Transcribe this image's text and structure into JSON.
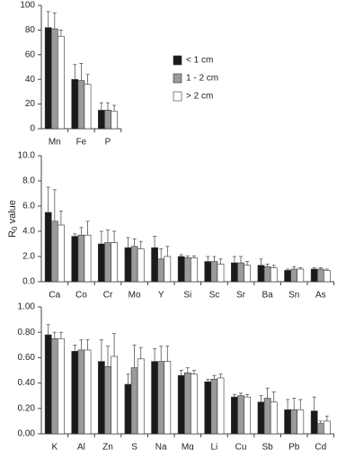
{
  "chart_data": [
    {
      "type": "bar",
      "categories": [
        "Mn",
        "Fe",
        "P"
      ],
      "series": [
        {
          "name": "< 1 cm",
          "color": "#1a1a1a",
          "values": [
            82,
            40,
            15
          ],
          "errors": [
            13,
            12,
            6
          ]
        },
        {
          "name": "1 - 2 cm",
          "color": "#9a9a9a",
          "values": [
            81,
            39,
            15
          ],
          "errors": [
            13,
            14,
            6
          ]
        },
        {
          "name": "> 2 cm",
          "color": "#ffffff",
          "values": [
            75,
            36,
            14
          ],
          "errors": [
            5,
            8,
            5
          ]
        }
      ],
      "ylim": [
        0,
        100
      ],
      "yticks": [
        0,
        20,
        40,
        60,
        80,
        100
      ],
      "legend": "right"
    },
    {
      "type": "bar",
      "categories": [
        "Ca",
        "Co",
        "Cr",
        "Mo",
        "Y",
        "Si",
        "Sc",
        "Sr",
        "Ba",
        "Sn",
        "As"
      ],
      "ylabel": {
        "main": "R",
        "sub": "0",
        "tail": " value"
      },
      "series": [
        {
          "color": "#1a1a1a",
          "values": [
            5.5,
            3.6,
            3.0,
            2.7,
            2.7,
            2.0,
            1.6,
            1.5,
            1.3,
            0.9,
            1.0
          ],
          "errors": [
            2.0,
            0.2,
            1.0,
            0.8,
            0.9,
            0.15,
            0.4,
            0.5,
            0.5,
            0.1,
            0.1
          ]
        },
        {
          "color": "#9a9a9a",
          "values": [
            4.8,
            3.7,
            3.1,
            2.8,
            1.8,
            1.9,
            1.6,
            1.5,
            1.2,
            1.0,
            1.0
          ],
          "errors": [
            2.5,
            0.6,
            1.0,
            0.6,
            0.8,
            0.15,
            0.4,
            0.5,
            0.2,
            0.2,
            0.1
          ]
        },
        {
          "color": "#ffffff",
          "values": [
            4.5,
            3.7,
            3.1,
            2.6,
            2.0,
            1.9,
            1.4,
            1.3,
            1.1,
            1.0,
            0.9
          ],
          "errors": [
            1.1,
            1.1,
            0.9,
            0.6,
            0.8,
            0.15,
            0.4,
            0.3,
            0.2,
            0.1,
            0.1
          ]
        }
      ],
      "ylim": [
        0,
        10
      ],
      "yticks": [
        {
          "value": 0,
          "label": "0.0"
        },
        {
          "value": 2,
          "label": "2.0"
        },
        {
          "value": 4,
          "label": "4.0"
        },
        {
          "value": 6,
          "label": "6.0"
        },
        {
          "value": 8,
          "label": "8.0"
        },
        {
          "value": 10,
          "label": "10.0"
        }
      ]
    },
    {
      "type": "bar",
      "categories": [
        "K",
        "Al",
        "Zn",
        "S",
        "Na",
        "Mg",
        "Li",
        "Cu",
        "Sb",
        "Pb",
        "Cd"
      ],
      "series": [
        {
          "color": "#1a1a1a",
          "values": [
            0.78,
            0.65,
            0.57,
            0.39,
            0.57,
            0.46,
            0.41,
            0.29,
            0.25,
            0.19,
            0.18
          ],
          "errors": [
            0.08,
            0.05,
            0.17,
            0.08,
            0.1,
            0.04,
            0.02,
            0.02,
            0.05,
            0.08,
            0.11
          ]
        },
        {
          "color": "#9a9a9a",
          "values": [
            0.75,
            0.66,
            0.53,
            0.52,
            0.57,
            0.48,
            0.43,
            0.3,
            0.28,
            0.19,
            0.08
          ],
          "errors": [
            0.05,
            0.08,
            0.16,
            0.18,
            0.12,
            0.04,
            0.03,
            0.02,
            0.08,
            0.09,
            0.02
          ]
        },
        {
          "color": "#ffffff",
          "values": [
            0.75,
            0.66,
            0.61,
            0.59,
            0.57,
            0.47,
            0.44,
            0.29,
            0.25,
            0.19,
            0.1
          ],
          "errors": [
            0.05,
            0.08,
            0.18,
            0.09,
            0.12,
            0.03,
            0.03,
            0.02,
            0.08,
            0.08,
            0.04
          ]
        }
      ],
      "ylim": [
        0,
        1
      ],
      "yticks": [
        {
          "value": 0,
          "label": "0.00"
        },
        {
          "value": 0.2,
          "label": "0.20"
        },
        {
          "value": 0.4,
          "label": "0.40"
        },
        {
          "value": 0.6,
          "label": "0.60"
        },
        {
          "value": 0.8,
          "label": "0.80"
        },
        {
          "value": 1,
          "label": "1.00"
        }
      ]
    }
  ]
}
